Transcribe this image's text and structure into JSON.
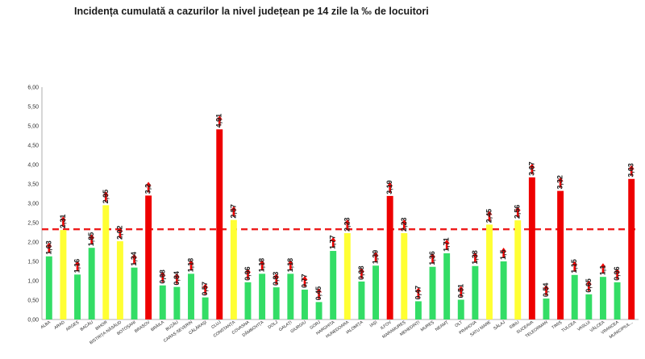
{
  "chart_data": {
    "type": "bar",
    "title": "Incidența cumulată a cazurilor la nivel județean pe 14 zile la ‰ de locuitori",
    "xlabel": "",
    "ylabel": "",
    "ylim": [
      0,
      6
    ],
    "yticks": [
      "0,00",
      "0,50",
      "1,00",
      "1,50",
      "2,00",
      "2,50",
      "3,00",
      "3,50",
      "4,00",
      "4,50",
      "5,00",
      "5,50",
      "6,00"
    ],
    "grid": false,
    "reference_line": 2.33,
    "reference_color": "#ee1c1c",
    "colors": {
      "low": "#33dd66",
      "mid": "#ffff33",
      "high": "#ee0000",
      "arrow": "#ee0000"
    },
    "categories": [
      "ALBA",
      "ARAD",
      "ARGEȘ",
      "BACĂU",
      "BIHOR",
      "BISTRIȚA-NĂSĂUD",
      "BOTOȘANI",
      "BRAȘOV",
      "BRĂILA",
      "BUZĂU",
      "CARAȘ-SEVERIN",
      "CĂLĂRAȘI",
      "CLUJ",
      "CONSTANȚA",
      "COVASNA",
      "DÂMBOVIȚA",
      "DOLJ",
      "GALAȚI",
      "GIURGIU",
      "GORJ",
      "HARGHITA",
      "HUNEDOARA",
      "IALOMIȚA",
      "IAȘI",
      "ILFOV",
      "MARAMUREȘ",
      "MEHEDINȚI",
      "MUREȘ",
      "NEAMȚ",
      "OLT",
      "PRAHOVA",
      "SATU MARE",
      "SĂLAJ",
      "SIBIU",
      "SUCEAVA",
      "TELEORMAN",
      "TIMIȘ",
      "TULCEA",
      "VASLUI",
      "VÂLCEA",
      "VRANCEA",
      "MUNICIPIUL..."
    ],
    "values": [
      1.63,
      2.31,
      1.16,
      1.85,
      2.95,
      2.02,
      1.34,
      3.2,
      0.88,
      0.84,
      1.18,
      0.57,
      4.91,
      2.57,
      0.96,
      1.18,
      0.83,
      1.18,
      0.77,
      0.45,
      1.77,
      2.23,
      0.98,
      1.39,
      3.19,
      2.23,
      0.47,
      1.36,
      1.71,
      0.51,
      1.38,
      2.45,
      1.5,
      2.56,
      3.67,
      0.54,
      3.32,
      1.15,
      0.65,
      1.1,
      0.96,
      3.63
    ],
    "labels": [
      "1,63",
      "2,31",
      "1,16",
      "1,85",
      "2,95",
      "2,02",
      "1,34",
      "3,2",
      "0,88",
      "0,84",
      "1,18",
      "0,57",
      "4,91",
      "2,57",
      "0,96",
      "1,18",
      "0,83",
      "1,18",
      "0,77",
      "0,45",
      "1,77",
      "2,23",
      "0,98",
      "1,39",
      "3,19",
      "2,23",
      "0,47",
      "1,36",
      "1,71",
      "0,51",
      "1,38",
      "2,45",
      "1,5",
      "2,56",
      "3,67",
      "0,54",
      "3,32",
      "1,15",
      "0,65",
      "1,1",
      "0,96",
      "3,63"
    ],
    "bar_colors": [
      "low",
      "mid",
      "low",
      "low",
      "mid",
      "mid",
      "low",
      "high",
      "low",
      "low",
      "low",
      "low",
      "high",
      "mid",
      "low",
      "low",
      "low",
      "low",
      "low",
      "low",
      "low",
      "mid",
      "low",
      "low",
      "high",
      "mid",
      "low",
      "low",
      "low",
      "low",
      "low",
      "mid",
      "low",
      "mid",
      "high",
      "low",
      "high",
      "low",
      "low",
      "low",
      "low",
      "high"
    ]
  }
}
